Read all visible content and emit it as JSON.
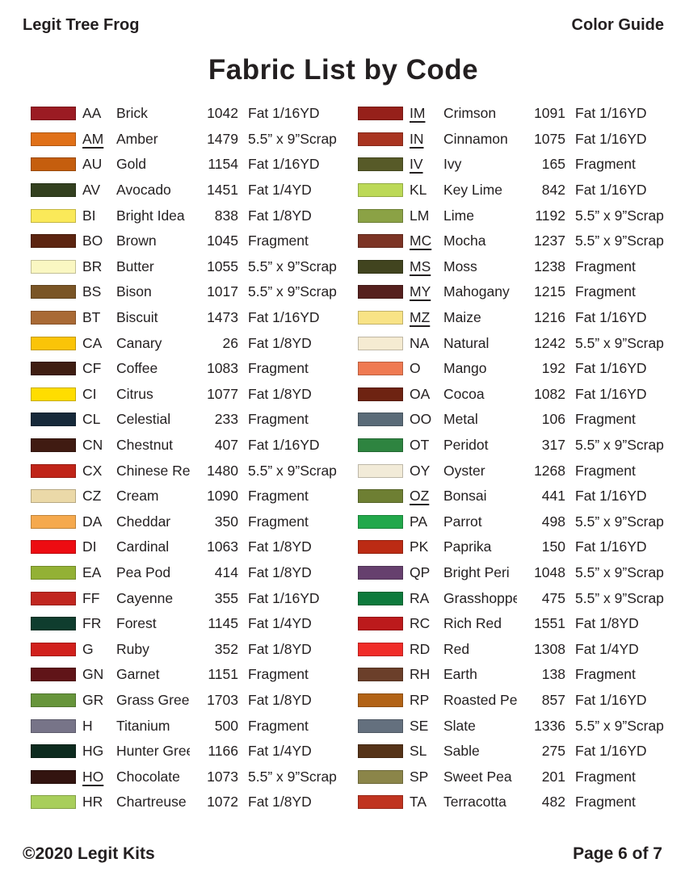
{
  "header": {
    "left": "Legit Tree Frog",
    "right": "Color Guide"
  },
  "title": "Fabric List by Code",
  "footer": {
    "left": "©2020 Legit Kits",
    "right": "Page 6 of 7"
  },
  "fabric_list": {
    "left": [
      {
        "code": "AA",
        "underlined": false,
        "name": "Brick",
        "number": "1042",
        "size": "Fat 1/16YD",
        "color": "#9B1B23"
      },
      {
        "code": "AM",
        "underlined": true,
        "name": "Amber",
        "number": "1479",
        "size": "5.5” x 9”Scrap",
        "color": "#E07018"
      },
      {
        "code": "AU",
        "underlined": false,
        "name": "Gold",
        "number": "1154",
        "size": "Fat 1/16YD",
        "color": "#C55E0E"
      },
      {
        "code": "AV",
        "underlined": false,
        "name": "Avocado",
        "number": "1451",
        "size": "Fat 1/4YD",
        "color": "#33401F"
      },
      {
        "code": "BI",
        "underlined": false,
        "name": "Bright Idea",
        "number": "838",
        "size": "Fat 1/8YD",
        "color": "#FAE959"
      },
      {
        "code": "BO",
        "underlined": false,
        "name": "Brown",
        "number": "1045",
        "size": "Fragment",
        "color": "#5C2410"
      },
      {
        "code": "BR",
        "underlined": false,
        "name": "Butter",
        "number": "1055",
        "size": "5.5” x 9”Scrap",
        "color": "#FAF7C2"
      },
      {
        "code": "BS",
        "underlined": false,
        "name": "Bison",
        "number": "1017",
        "size": "5.5” x 9”Scrap",
        "color": "#7A5526"
      },
      {
        "code": "BT",
        "underlined": false,
        "name": "Biscuit",
        "number": "1473",
        "size": "Fat 1/16YD",
        "color": "#A96A35"
      },
      {
        "code": "CA",
        "underlined": false,
        "name": "Canary",
        "number": "26",
        "size": "Fat 1/8YD",
        "color": "#FAC408"
      },
      {
        "code": "CF",
        "underlined": false,
        "name": "Coffee",
        "number": "1083",
        "size": "Fragment",
        "color": "#3F1E12"
      },
      {
        "code": "CI",
        "underlined": false,
        "name": "Citrus",
        "number": "1077",
        "size": "Fat 1/8YD",
        "color": "#FFDD00"
      },
      {
        "code": "CL",
        "underlined": false,
        "name": "Celestial",
        "number": "233",
        "size": "Fragment",
        "color": "#16293A"
      },
      {
        "code": "CN",
        "underlined": false,
        "name": "Chestnut",
        "number": "407",
        "size": "Fat 1/16YD",
        "color": "#401B12"
      },
      {
        "code": "CX",
        "underlined": false,
        "name": "Chinese Red",
        "number": "1480",
        "size": "5.5” x 9”Scrap",
        "color": "#C02418"
      },
      {
        "code": "CZ",
        "underlined": false,
        "name": "Cream",
        "number": "1090",
        "size": "Fragment",
        "color": "#EBD9A8"
      },
      {
        "code": "DA",
        "underlined": false,
        "name": "Cheddar",
        "number": "350",
        "size": "Fragment",
        "color": "#F5A94E"
      },
      {
        "code": "DI",
        "underlined": false,
        "name": "Cardinal",
        "number": "1063",
        "size": "Fat 1/8YD",
        "color": "#ED0C12"
      },
      {
        "code": "EA",
        "underlined": false,
        "name": "Pea Pod",
        "number": "414",
        "size": "Fat 1/8YD",
        "color": "#93B135"
      },
      {
        "code": "FF",
        "underlined": false,
        "name": "Cayenne",
        "number": "355",
        "size": "Fat 1/16YD",
        "color": "#C12720"
      },
      {
        "code": "FR",
        "underlined": false,
        "name": "Forest",
        "number": "1145",
        "size": "Fat 1/4YD",
        "color": "#0F3D2E"
      },
      {
        "code": "G",
        "underlined": false,
        "name": "Ruby",
        "number": "352",
        "size": "Fat 1/8YD",
        "color": "#D1201C"
      },
      {
        "code": "GN",
        "underlined": false,
        "name": "Garnet",
        "number": "1151",
        "size": "Fragment",
        "color": "#601418"
      },
      {
        "code": "GR",
        "underlined": false,
        "name": "Grass Green",
        "number": "1703",
        "size": "Fat 1/8YD",
        "color": "#67953B"
      },
      {
        "code": "H",
        "underlined": false,
        "name": "Titanium",
        "number": "500",
        "size": "Fragment",
        "color": "#777488"
      },
      {
        "code": "HG",
        "underlined": false,
        "name": "Hunter Green",
        "number": "1166",
        "size": "Fat 1/4YD",
        "color": "#0D2B1F"
      },
      {
        "code": "HO",
        "underlined": true,
        "name": "Chocolate",
        "number": "1073",
        "size": "5.5” x 9”Scrap",
        "color": "#331410"
      },
      {
        "code": "HR",
        "underlined": false,
        "name": "Chartreuse",
        "number": "1072",
        "size": "Fat 1/8YD",
        "color": "#A8CE5B"
      }
    ],
    "right": [
      {
        "code": "IM",
        "underlined": true,
        "name": "Crimson",
        "number": "1091",
        "size": "Fat 1/16YD",
        "color": "#96201A"
      },
      {
        "code": "IN",
        "underlined": true,
        "name": "Cinnamon",
        "number": "1075",
        "size": "Fat 1/16YD",
        "color": "#A93420"
      },
      {
        "code": "IV",
        "underlined": true,
        "name": "Ivy",
        "number": "165",
        "size": "Fragment",
        "color": "#575A28"
      },
      {
        "code": "KL",
        "underlined": false,
        "name": "Key Lime",
        "number": "842",
        "size": "Fat 1/16YD",
        "color": "#BCD957"
      },
      {
        "code": "LM",
        "underlined": false,
        "name": "Lime",
        "number": "1192",
        "size": "5.5” x 9”Scrap",
        "color": "#8BA245"
      },
      {
        "code": "MC",
        "underlined": true,
        "name": "Mocha",
        "number": "1237",
        "size": "5.5” x 9”Scrap",
        "color": "#7C3425"
      },
      {
        "code": "MS",
        "underlined": true,
        "name": "Moss",
        "number": "1238",
        "size": "Fragment",
        "color": "#41441F"
      },
      {
        "code": "MY",
        "underlined": true,
        "name": "Mahogany",
        "number": "1215",
        "size": "Fragment",
        "color": "#55201E"
      },
      {
        "code": "MZ",
        "underlined": true,
        "name": "Maize",
        "number": "1216",
        "size": "Fat 1/16YD",
        "color": "#F8E386"
      },
      {
        "code": "NA",
        "underlined": false,
        "name": "Natural",
        "number": "1242",
        "size": "5.5” x 9”Scrap",
        "color": "#F5EBD2"
      },
      {
        "code": "O",
        "underlined": false,
        "name": "Mango",
        "number": "192",
        "size": "Fat 1/16YD",
        "color": "#EF7A52"
      },
      {
        "code": "OA",
        "underlined": false,
        "name": "Cocoa",
        "number": "1082",
        "size": "Fat 1/16YD",
        "color": "#6E2312"
      },
      {
        "code": "OO",
        "underlined": false,
        "name": "Metal",
        "number": "106",
        "size": "Fragment",
        "color": "#5A6B78"
      },
      {
        "code": "OT",
        "underlined": false,
        "name": "Peridot",
        "number": "317",
        "size": "5.5” x 9”Scrap",
        "color": "#2E8440"
      },
      {
        "code": "OY",
        "underlined": false,
        "name": "Oyster",
        "number": "1268",
        "size": "Fragment",
        "color": "#F2EBD8"
      },
      {
        "code": "OZ",
        "underlined": true,
        "name": "Bonsai",
        "number": "441",
        "size": "Fat 1/16YD",
        "color": "#6E7F33"
      },
      {
        "code": "PA",
        "underlined": false,
        "name": "Parrot",
        "number": "498",
        "size": "5.5” x 9”Scrap",
        "color": "#22A84B"
      },
      {
        "code": "PK",
        "underlined": false,
        "name": "Paprika",
        "number": "150",
        "size": "Fat 1/16YD",
        "color": "#BC2B14"
      },
      {
        "code": "QP",
        "underlined": false,
        "name": "Bright Peri",
        "number": "1048",
        "size": "5.5” x 9”Scrap",
        "color": "#66406E"
      },
      {
        "code": "RA",
        "underlined": false,
        "name": "Grasshopper",
        "number": "475",
        "size": "5.5” x 9”Scrap",
        "color": "#0E7A3C"
      },
      {
        "code": "RC",
        "underlined": false,
        "name": "Rich Red",
        "number": "1551",
        "size": "Fat 1/8YD",
        "color": "#BC1A1C"
      },
      {
        "code": "RD",
        "underlined": false,
        "name": "Red",
        "number": "1308",
        "size": "Fat 1/4YD",
        "color": "#F02C28"
      },
      {
        "code": "RH",
        "underlined": false,
        "name": "Earth",
        "number": "138",
        "size": "Fragment",
        "color": "#6B3F2A"
      },
      {
        "code": "RP",
        "underlined": false,
        "name": "Roasted Pecan",
        "number": "857",
        "size": "Fat 1/16YD",
        "color": "#B26316"
      },
      {
        "code": "SE",
        "underlined": false,
        "name": "Slate",
        "number": "1336",
        "size": "5.5” x 9”Scrap",
        "color": "#64707E"
      },
      {
        "code": "SL",
        "underlined": false,
        "name": "Sable",
        "number": "275",
        "size": "Fat 1/16YD",
        "color": "#553318"
      },
      {
        "code": "SP",
        "underlined": false,
        "name": "Sweet Pea",
        "number": "201",
        "size": "Fragment",
        "color": "#8B8549"
      },
      {
        "code": "TA",
        "underlined": false,
        "name": "Terracotta",
        "number": "482",
        "size": "Fragment",
        "color": "#C03420"
      }
    ]
  }
}
